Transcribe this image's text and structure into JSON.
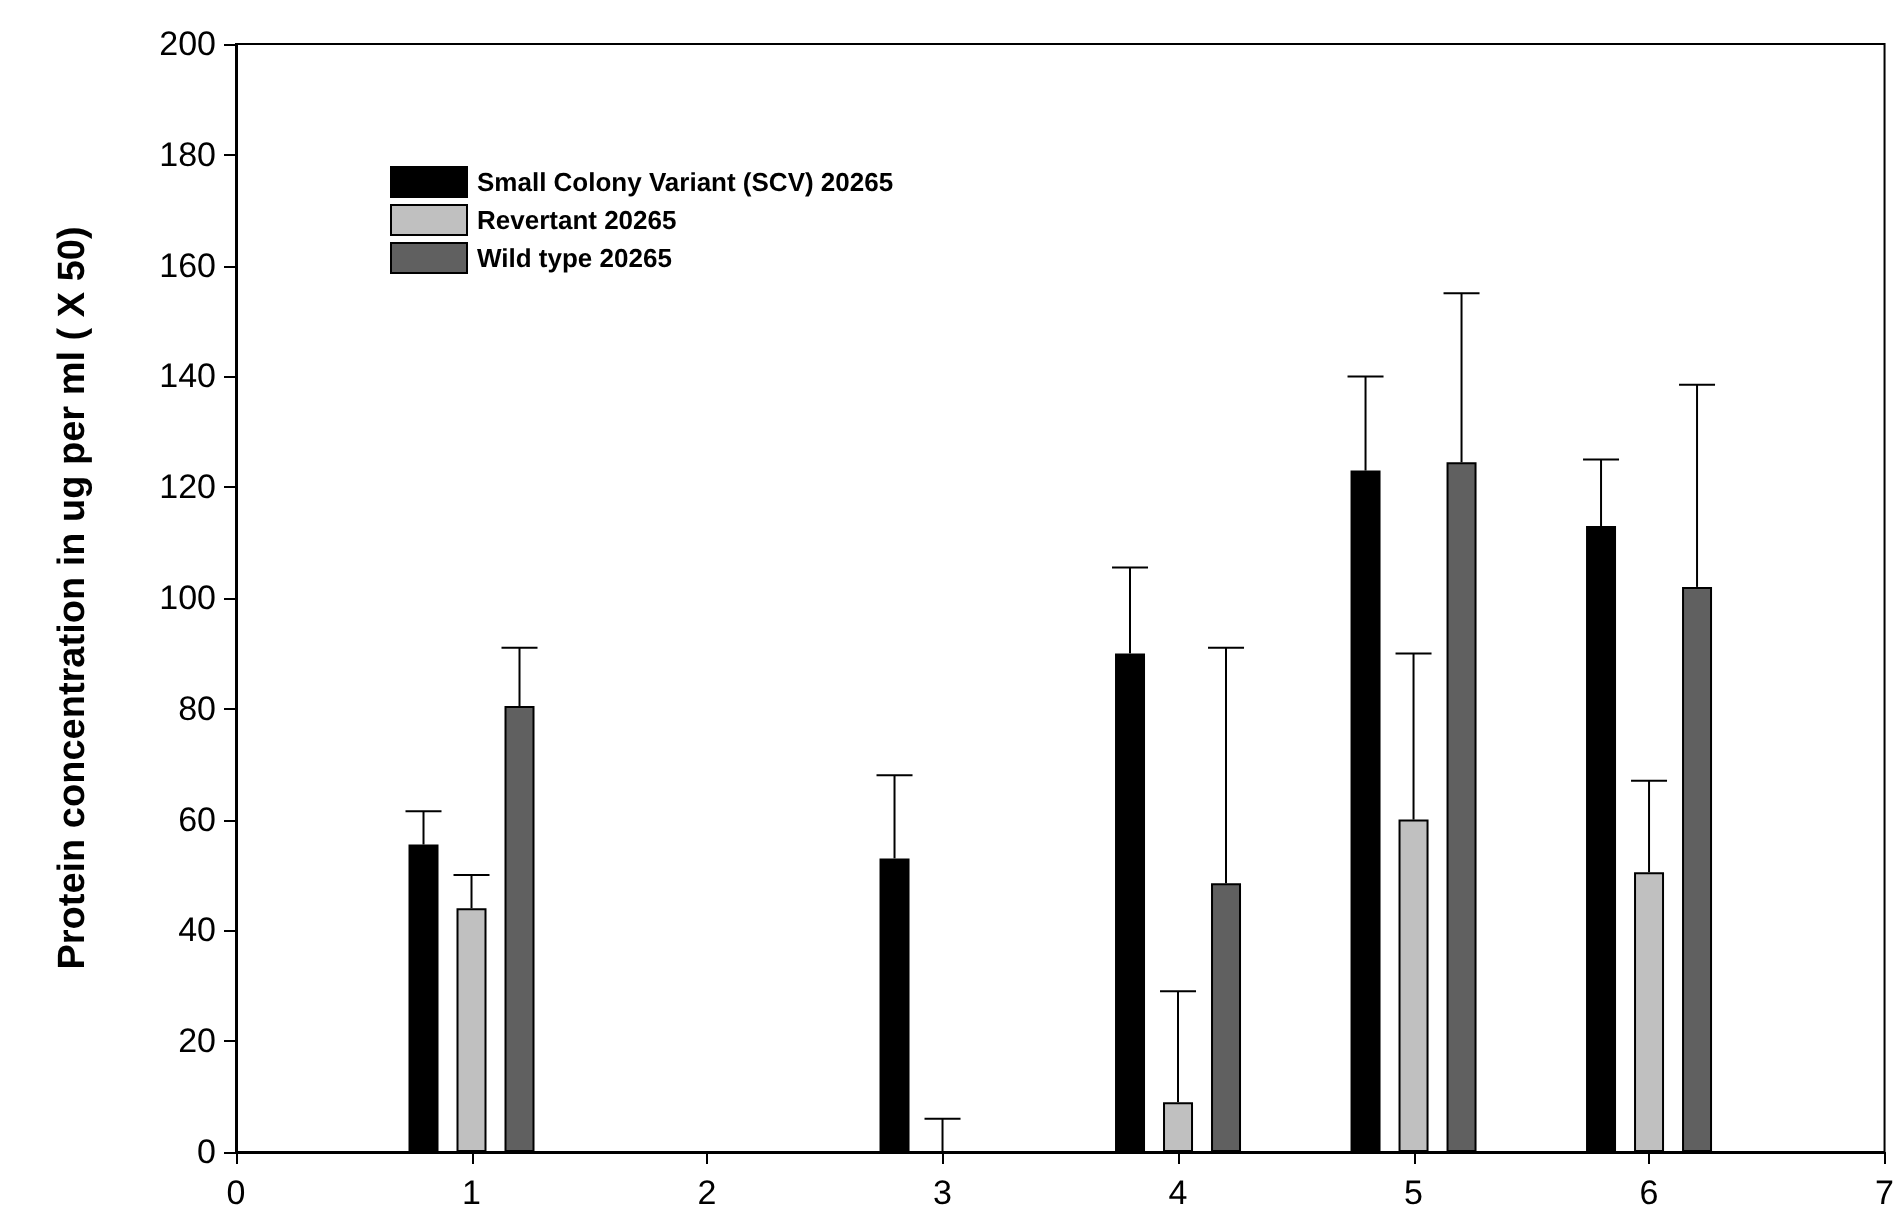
{
  "chart_data": {
    "type": "bar",
    "ylabel": "Protein concentration in ug per ml ( X 50)",
    "x": [
      1,
      3,
      4,
      5,
      6
    ],
    "xlim": [
      0,
      7
    ],
    "xticks": [
      0,
      1,
      2,
      3,
      4,
      5,
      6,
      7
    ],
    "ylim": [
      0,
      200
    ],
    "yticks": [
      0,
      20,
      40,
      60,
      80,
      100,
      120,
      140,
      160,
      180,
      200
    ],
    "grid": false,
    "legend": "top left",
    "series": [
      {
        "name": "Small Colony Variant (SCV) 20265",
        "color": "#000000",
        "values": [
          55.5,
          53,
          90,
          123,
          113
        ],
        "errors": [
          [
            55.5,
            61.5
          ],
          [
            53,
            68
          ],
          [
            90,
            105.5
          ],
          [
            123,
            140
          ],
          [
            113,
            125
          ]
        ]
      },
      {
        "name": "Revertant 20265",
        "color": "#c0c0c0",
        "values": [
          44,
          0,
          9,
          60,
          50.5
        ],
        "errors": [
          [
            44,
            50
          ],
          [
            0,
            6
          ],
          [
            9,
            29
          ],
          [
            60,
            90
          ],
          [
            50.5,
            67
          ]
        ]
      },
      {
        "name": "Wild type 20265",
        "color": "#606060",
        "values": [
          80.5,
          null,
          48.5,
          124.5,
          102
        ],
        "errors": [
          [
            80.5,
            91
          ],
          null,
          [
            48.5,
            91
          ],
          [
            124.5,
            155
          ],
          [
            102,
            138.5
          ]
        ]
      }
    ]
  }
}
